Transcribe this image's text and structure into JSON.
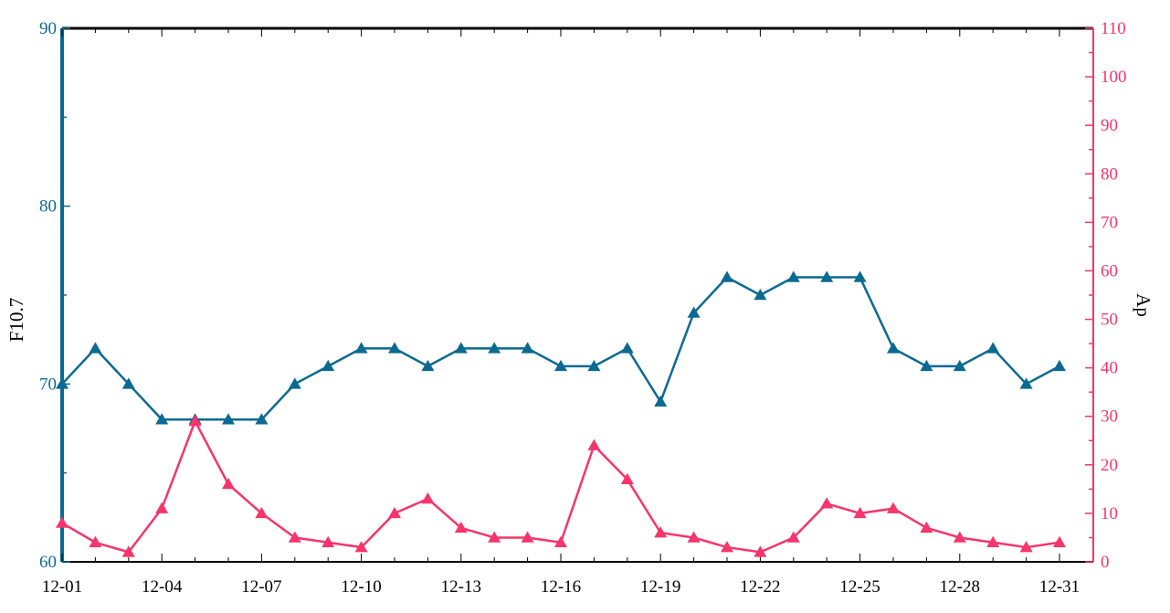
{
  "colors": {
    "f107": "#0b6a91",
    "ap": "#f5356b",
    "frame": "#000000",
    "background": "#ffffff"
  },
  "chart_data": {
    "type": "line",
    "marker": "triangle",
    "x": [
      "12-01",
      "12-02",
      "12-03",
      "12-04",
      "12-05",
      "12-06",
      "12-07",
      "12-08",
      "12-09",
      "12-10",
      "12-11",
      "12-12",
      "12-13",
      "12-14",
      "12-15",
      "12-16",
      "12-17",
      "12-18",
      "12-19",
      "12-20",
      "12-21",
      "12-22",
      "12-23",
      "12-24",
      "12-25",
      "12-26",
      "12-27",
      "12-28",
      "12-29",
      "12-30",
      "12-31"
    ],
    "x_tick_labels": [
      "12-01",
      "12-04",
      "12-07",
      "12-10",
      "12-13",
      "12-16",
      "12-19",
      "12-22",
      "12-25",
      "12-28",
      "12-31"
    ],
    "y_left": {
      "label": "F10.7",
      "range": [
        60,
        90
      ],
      "tick_labels": [
        "60",
        "70",
        "80",
        "90"
      ]
    },
    "y_right": {
      "label": "Ap",
      "range": [
        0,
        110
      ],
      "tick_labels": [
        "0",
        "10",
        "20",
        "30",
        "40",
        "50",
        "60",
        "70",
        "80",
        "90",
        "100",
        "110"
      ]
    },
    "series": [
      {
        "name": "F10.7",
        "axis": "left",
        "values": [
          70,
          72,
          70,
          68,
          68,
          68,
          68,
          70,
          71,
          72,
          72,
          71,
          72,
          72,
          72,
          71,
          71,
          72,
          69,
          74,
          76,
          75,
          76,
          76,
          76,
          72,
          71,
          71,
          72,
          70,
          71
        ]
      },
      {
        "name": "Ap",
        "axis": "right",
        "values": [
          8,
          4,
          2,
          11,
          29,
          16,
          10,
          5,
          4,
          3,
          10,
          13,
          7,
          5,
          5,
          4,
          24,
          17,
          6,
          5,
          3,
          2,
          5,
          12,
          10,
          11,
          7,
          5,
          4,
          3,
          4
        ]
      }
    ]
  }
}
